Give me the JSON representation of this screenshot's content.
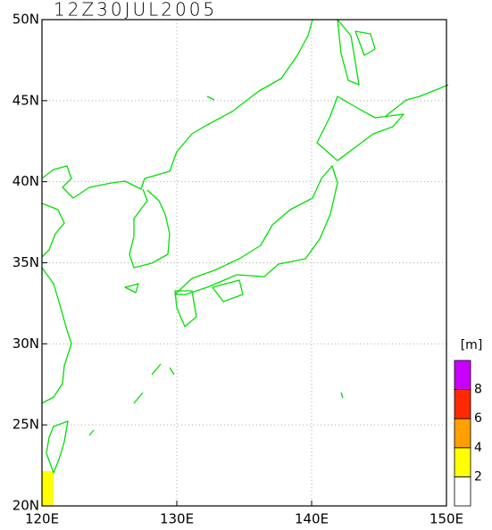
{
  "title": "12Z30JUL2005",
  "lon_axis": {
    "range": [
      120,
      150
    ],
    "ticks": [
      {
        "value": 120,
        "label": "120E"
      },
      {
        "value": 130,
        "label": "130E"
      },
      {
        "value": 140,
        "label": "140E"
      },
      {
        "value": 150,
        "label": "150E"
      }
    ]
  },
  "lat_axis": {
    "range": [
      20,
      50
    ],
    "ticks": [
      {
        "value": 20,
        "label": "20N"
      },
      {
        "value": 25,
        "label": "25N"
      },
      {
        "value": 30,
        "label": "30N"
      },
      {
        "value": 35,
        "label": "35N"
      },
      {
        "value": 40,
        "label": "40N"
      },
      {
        "value": 45,
        "label": "45N"
      },
      {
        "value": 50,
        "label": "50N"
      }
    ]
  },
  "colorbar": {
    "unit": "[m]",
    "levels": [
      2,
      4,
      6,
      8
    ],
    "colors": [
      "#ffffff",
      "#ffff00",
      "#ffa000",
      "#ff2800",
      "#c800ff"
    ]
  }
}
